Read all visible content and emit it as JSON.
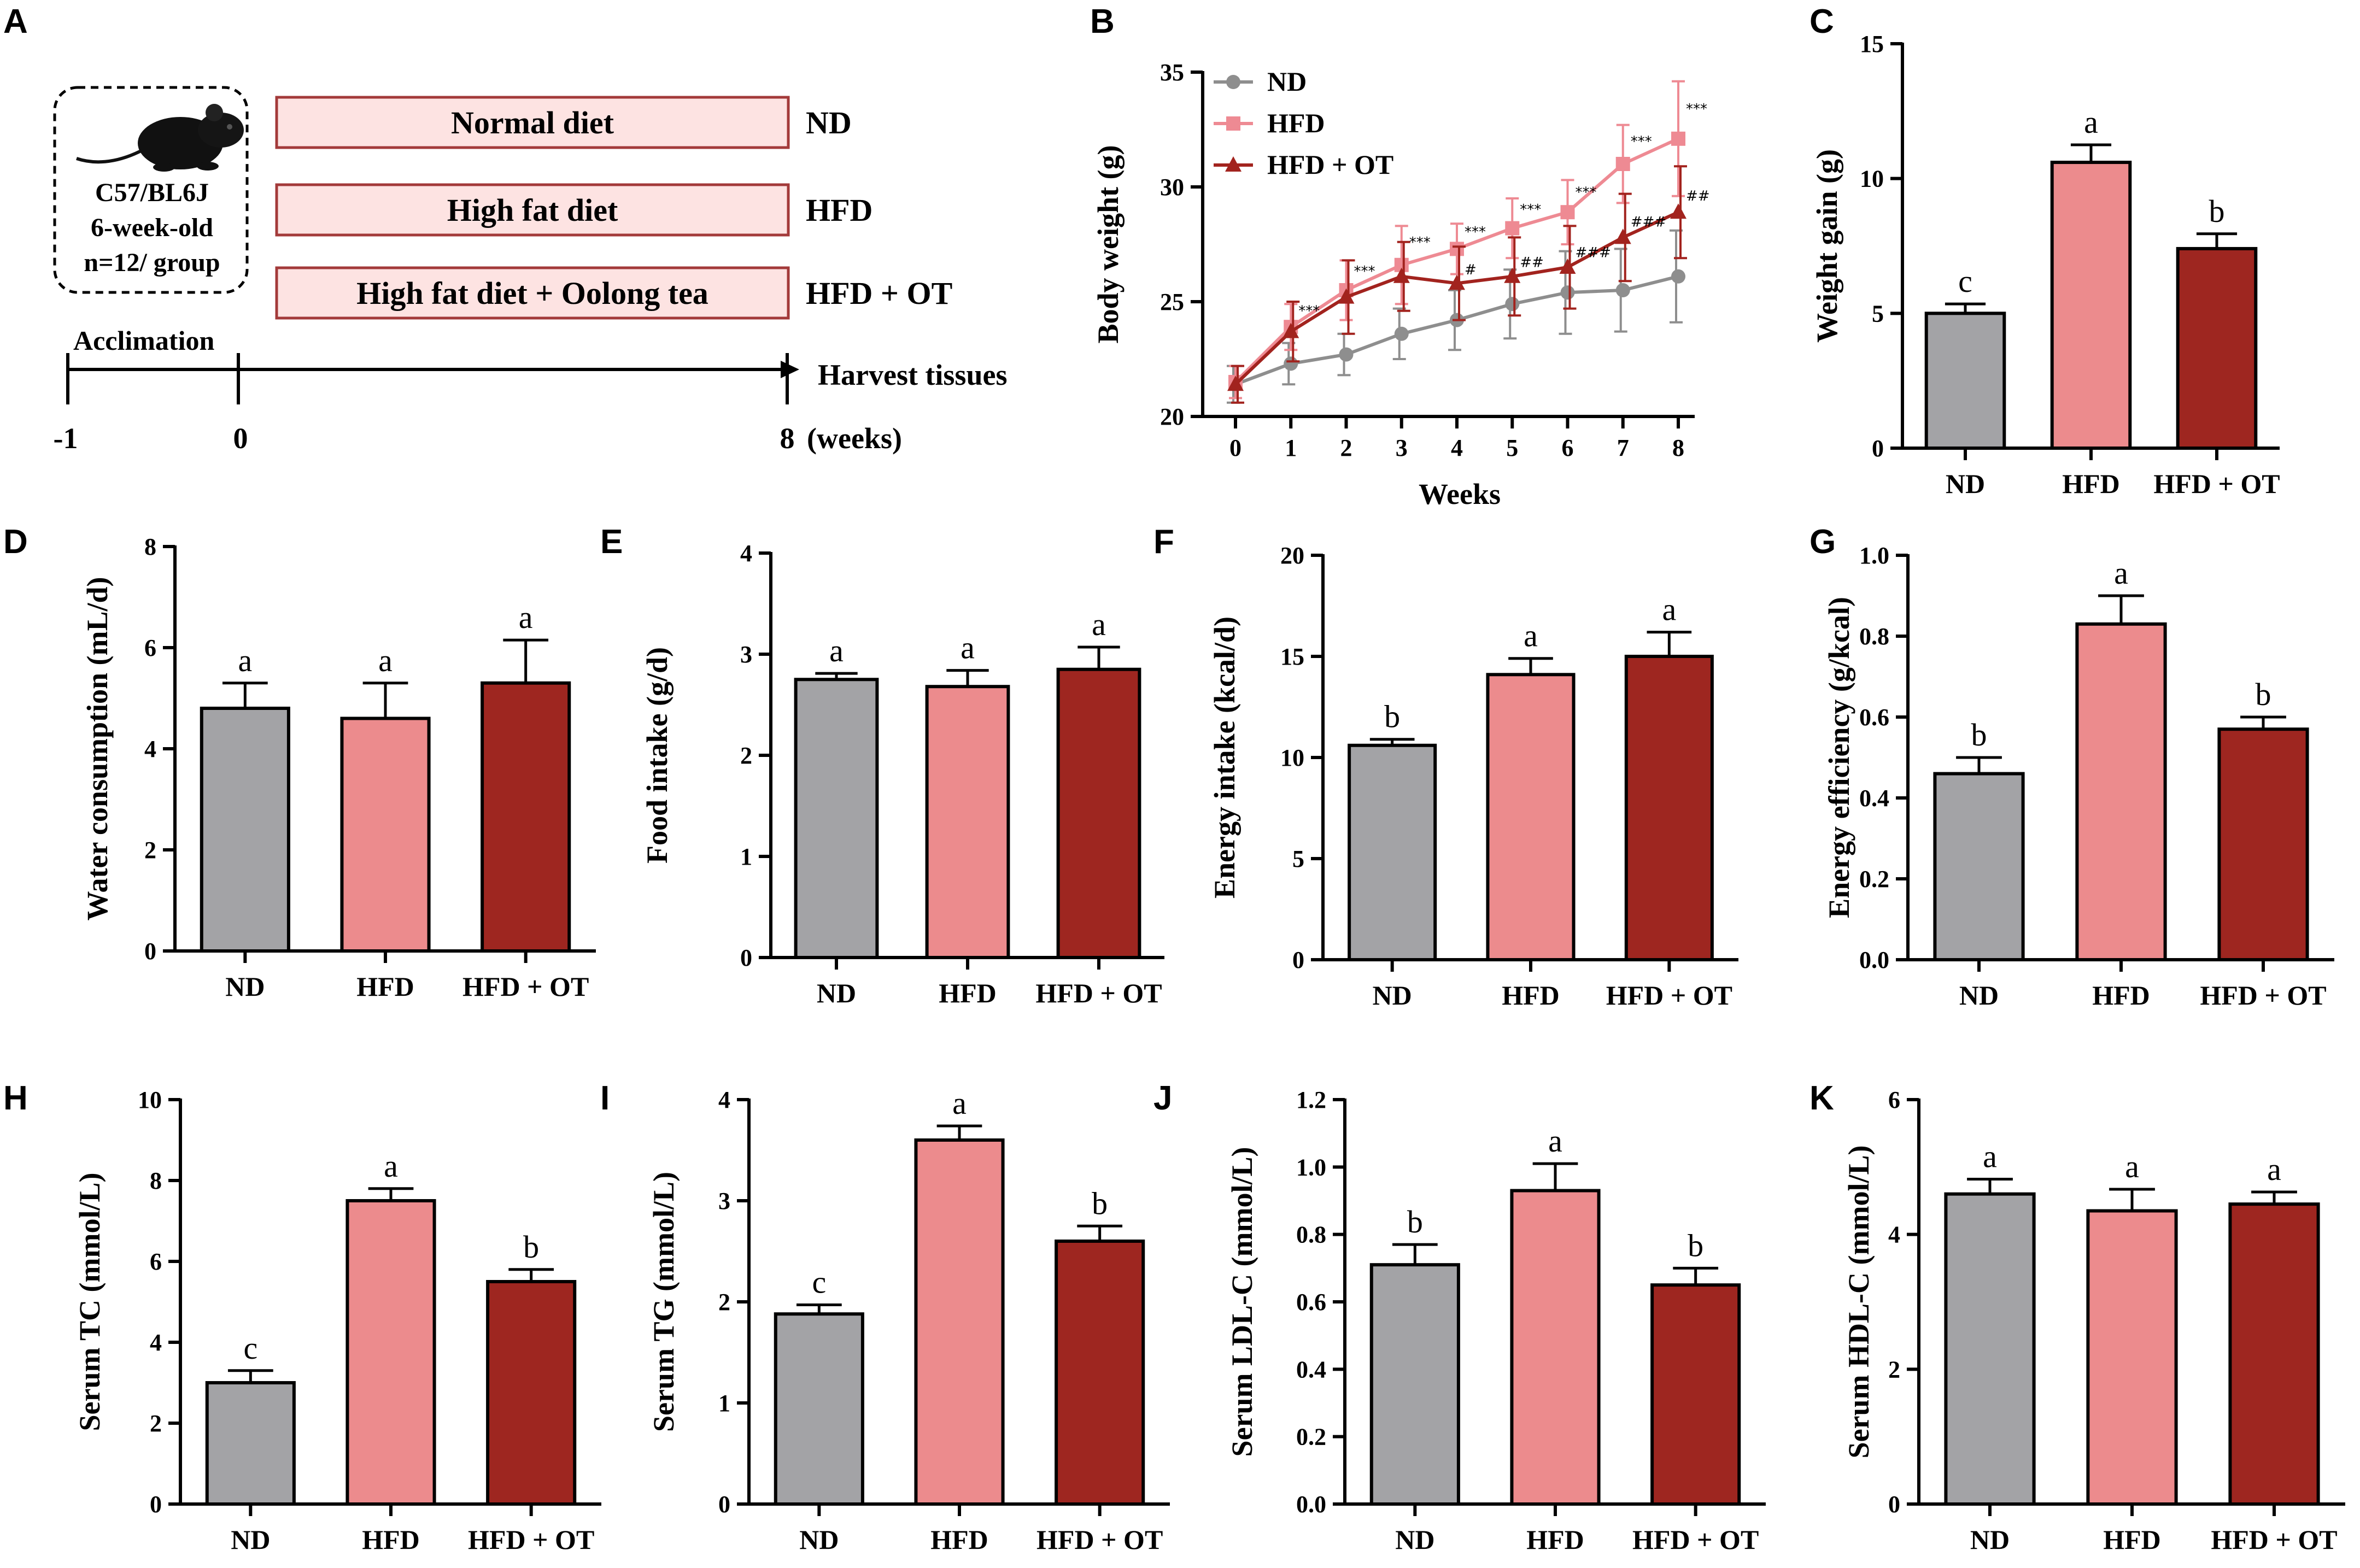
{
  "colors": {
    "nd": "#a3a3a6",
    "hfd": "#ec8b8d",
    "ot": "#9e2620",
    "nd_line": "#8e8e8e",
    "hfd_line": "#ee8a93",
    "ot_line": "#a2231e",
    "box_fill": "#fde3e2",
    "box_stroke": "#a33a3a"
  },
  "panelA": {
    "letter": "A",
    "mouse_icon": "mouse-icon",
    "mouse_lines": [
      "C57/BL6J",
      "6-week-old",
      "n=12/ group"
    ],
    "diets": [
      {
        "label": "Normal diet",
        "group": "ND"
      },
      {
        "label": "High fat diet",
        "group": "HFD"
      },
      {
        "label": "High fat diet + Oolong tea",
        "group": "HFD + OT"
      }
    ],
    "acclimation": "Acclimation",
    "harvest": "Harvest tissues",
    "ticks": [
      "-1",
      "0",
      "8"
    ],
    "weeks_unit": "(weeks)"
  },
  "chart_data": [
    {
      "id": "B",
      "type": "line",
      "title": "",
      "xlabel": "Weeks",
      "ylabel": "Body weight (g)",
      "x": [
        0,
        1,
        2,
        3,
        4,
        5,
        6,
        7,
        8
      ],
      "xlim": [
        0,
        8
      ],
      "ylim": [
        20,
        35
      ],
      "yticks": [
        20,
        25,
        30,
        35
      ],
      "legend": [
        "ND",
        "HFD",
        "HFD + OT"
      ],
      "legend_position": "top-left",
      "series": [
        {
          "name": "ND",
          "values": [
            21.4,
            22.3,
            22.7,
            23.6,
            24.2,
            24.9,
            25.4,
            25.5,
            26.1
          ],
          "errors": [
            0.8,
            0.9,
            0.9,
            1.1,
            1.3,
            1.5,
            1.8,
            1.8,
            2.0
          ]
        },
        {
          "name": "HFD",
          "values": [
            21.5,
            23.9,
            25.5,
            26.6,
            27.3,
            28.2,
            28.9,
            31.0,
            32.1
          ],
          "errors": [
            0.7,
            1.0,
            1.3,
            1.7,
            1.1,
            1.3,
            1.4,
            1.7,
            2.5
          ]
        },
        {
          "name": "HFD + OT",
          "values": [
            21.4,
            23.7,
            25.2,
            26.1,
            25.8,
            26.1,
            26.5,
            27.8,
            28.9
          ],
          "errors": [
            0.8,
            1.3,
            1.6,
            1.5,
            1.6,
            1.7,
            1.8,
            1.9,
            2.0
          ]
        }
      ],
      "annotations_hfd": [
        "",
        "***",
        "***",
        "***",
        "***",
        "***",
        "***",
        "***",
        "***"
      ],
      "annotations_ot": [
        "",
        "",
        "",
        "",
        "#",
        "##",
        "###",
        "###",
        "##"
      ]
    },
    {
      "id": "C",
      "type": "bar",
      "ylabel": "Weight gain (g)",
      "categories": [
        "ND",
        "HFD",
        "HFD + OT"
      ],
      "values": [
        5.0,
        10.6,
        7.4
      ],
      "errors": [
        0.35,
        0.65,
        0.55
      ],
      "letters": [
        "c",
        "a",
        "b"
      ],
      "ylim": [
        0,
        15
      ],
      "yticks": [
        "0",
        "5",
        "10",
        "15"
      ]
    },
    {
      "id": "D",
      "type": "bar",
      "ylabel": "Water consumption (mL/d)",
      "categories": [
        "ND",
        "HFD",
        "HFD + OT"
      ],
      "values": [
        4.8,
        4.6,
        5.3
      ],
      "errors": [
        0.5,
        0.7,
        0.85
      ],
      "letters": [
        "a",
        "a",
        "a"
      ],
      "ylim": [
        0,
        8
      ],
      "yticks": [
        "0",
        "2",
        "4",
        "6",
        "8"
      ]
    },
    {
      "id": "E",
      "type": "bar",
      "ylabel": "Food intake (g/d)",
      "categories": [
        "ND",
        "HFD",
        "HFD + OT"
      ],
      "values": [
        2.75,
        2.68,
        2.85
      ],
      "errors": [
        0.06,
        0.16,
        0.22
      ],
      "letters": [
        "a",
        "a",
        "a"
      ],
      "ylim": [
        0,
        4
      ],
      "yticks": [
        "0",
        "1",
        "2",
        "3",
        "4"
      ]
    },
    {
      "id": "F",
      "type": "bar",
      "ylabel": "Energy intake (kcal/d)",
      "categories": [
        "ND",
        "HFD",
        "HFD + OT"
      ],
      "values": [
        10.6,
        14.1,
        15.0
      ],
      "errors": [
        0.3,
        0.8,
        1.2
      ],
      "letters": [
        "b",
        "a",
        "a"
      ],
      "ylim": [
        0,
        20
      ],
      "yticks": [
        "0",
        "5",
        "10",
        "15",
        "20"
      ]
    },
    {
      "id": "G",
      "type": "bar",
      "ylabel": "Energy efficiency (g/kcal)",
      "categories": [
        "ND",
        "HFD",
        "HFD + OT"
      ],
      "values": [
        0.46,
        0.83,
        0.57
      ],
      "errors": [
        0.04,
        0.07,
        0.03
      ],
      "letters": [
        "b",
        "a",
        "b"
      ],
      "ylim": [
        0,
        1
      ],
      "yticks": [
        "0.0",
        "0.2",
        "0.4",
        "0.6",
        "0.8",
        "1.0"
      ]
    },
    {
      "id": "H",
      "type": "bar",
      "ylabel": "Serum TC (mmol/L)",
      "categories": [
        "ND",
        "HFD",
        "HFD + OT"
      ],
      "values": [
        3.0,
        7.5,
        5.5
      ],
      "errors": [
        0.3,
        0.3,
        0.3
      ],
      "letters": [
        "c",
        "a",
        "b"
      ],
      "ylim": [
        0,
        10
      ],
      "yticks": [
        "0",
        "2",
        "4",
        "6",
        "8",
        "10"
      ]
    },
    {
      "id": "I",
      "type": "bar",
      "ylabel": "Serum TG (mmol/L)",
      "categories": [
        "ND",
        "HFD",
        "HFD + OT"
      ],
      "values": [
        1.88,
        3.6,
        2.6
      ],
      "errors": [
        0.09,
        0.14,
        0.15
      ],
      "letters": [
        "c",
        "a",
        "b"
      ],
      "ylim": [
        0,
        4
      ],
      "yticks": [
        "0",
        "1",
        "2",
        "3",
        "4"
      ]
    },
    {
      "id": "J",
      "type": "bar",
      "ylabel": "Serum LDL-C (mmol/L)",
      "categories": [
        "ND",
        "HFD",
        "HFD + OT"
      ],
      "values": [
        0.71,
        0.93,
        0.65
      ],
      "errors": [
        0.06,
        0.08,
        0.05
      ],
      "letters": [
        "b",
        "a",
        "b"
      ],
      "ylim": [
        0,
        1.2
      ],
      "yticks": [
        "0.0",
        "0.2",
        "0.4",
        "0.6",
        "0.8",
        "1.0",
        "1.2"
      ]
    },
    {
      "id": "K",
      "type": "bar",
      "ylabel": "Serum HDL-C (mmol/L)",
      "categories": [
        "ND",
        "HFD",
        "HFD + OT"
      ],
      "values": [
        4.6,
        4.35,
        4.45
      ],
      "errors": [
        0.22,
        0.32,
        0.18
      ],
      "letters": [
        "a",
        "a",
        "a"
      ],
      "ylim": [
        0,
        6
      ],
      "yticks": [
        "0",
        "2",
        "4",
        "6"
      ]
    }
  ]
}
